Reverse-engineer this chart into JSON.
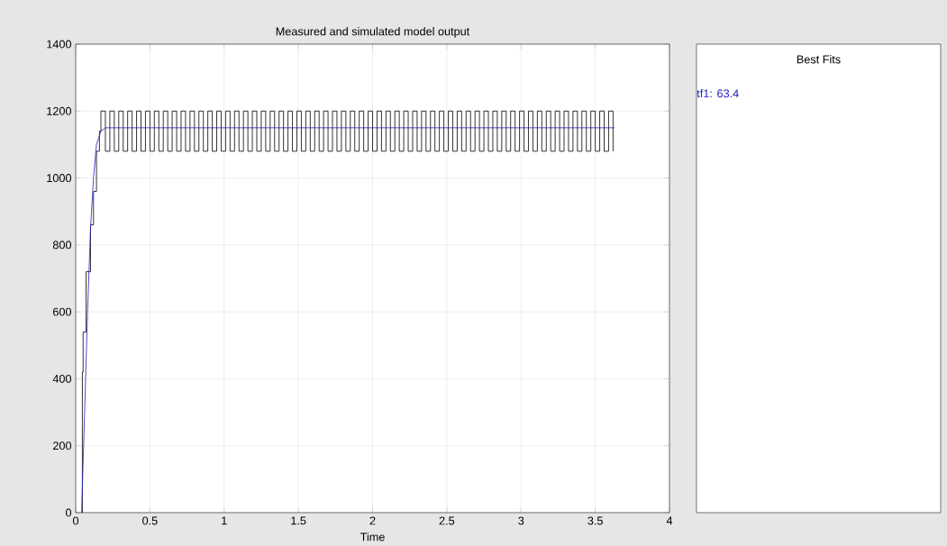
{
  "chart_data": [
    {
      "type": "line",
      "title": "Measured and simulated model output",
      "xlabel": "Time",
      "xlim": [
        0,
        4
      ],
      "ylim": [
        0,
        1400
      ],
      "xticks": [
        0,
        0.5,
        1,
        1.5,
        2,
        2.5,
        3,
        3.5,
        4
      ],
      "yticks": [
        0,
        200,
        400,
        600,
        800,
        1000,
        1200,
        1400
      ],
      "grid": true,
      "series": [
        {
          "type": "step",
          "color": "#000000",
          "x": [
            0.04,
            0.045,
            0.05,
            0.07,
            0.09,
            0.1,
            0.12,
            0.13,
            0.14,
            0.16,
            0.17,
            0.2,
            0.23,
            0.26,
            0.29,
            0.32,
            0.35,
            0.38,
            0.41,
            0.44,
            0.47,
            0.5,
            0.53,
            0.56,
            0.59,
            0.62,
            0.65,
            0.68,
            0.71,
            0.74,
            0.77,
            0.8,
            0.83,
            0.86,
            0.89,
            0.92,
            0.95,
            0.98,
            1.01,
            1.04,
            1.07,
            1.1,
            1.13,
            1.16,
            1.19,
            1.22,
            1.25,
            1.28,
            1.31,
            1.34,
            1.37,
            1.4,
            1.43,
            1.46,
            1.49,
            1.52,
            1.55,
            1.58,
            1.61,
            1.64,
            1.67,
            1.7,
            1.73,
            1.76,
            1.79,
            1.82,
            1.85,
            1.88,
            1.91,
            1.94,
            1.97,
            2.0,
            2.03,
            2.06,
            2.09,
            2.12,
            2.15,
            2.18,
            2.21,
            2.24,
            2.27,
            2.3,
            2.33,
            2.36,
            2.39,
            2.42,
            2.45,
            2.48,
            2.51,
            2.54,
            2.57,
            2.6,
            2.63,
            2.66,
            2.69,
            2.72,
            2.75,
            2.78,
            2.81,
            2.84,
            2.87,
            2.9,
            2.93,
            2.96,
            2.99,
            3.02,
            3.05,
            3.08,
            3.11,
            3.14,
            3.17,
            3.2,
            3.23,
            3.26,
            3.29,
            3.32,
            3.35,
            3.38,
            3.41,
            3.44,
            3.47,
            3.5,
            3.53,
            3.56,
            3.59,
            3.62
          ],
          "values": [
            0,
            420,
            540,
            720,
            720,
            860,
            960,
            960,
            1080,
            1140,
            1200,
            1080,
            1200,
            1080,
            1200,
            1080,
            1200,
            1080,
            1200,
            1080,
            1200,
            1080,
            1200,
            1080,
            1200,
            1080,
            1200,
            1080,
            1200,
            1080,
            1200,
            1080,
            1200,
            1080,
            1200,
            1080,
            1200,
            1080,
            1200,
            1080,
            1200,
            1080,
            1200,
            1080,
            1200,
            1080,
            1200,
            1080,
            1200,
            1080,
            1200,
            1080,
            1200,
            1080,
            1200,
            1080,
            1200,
            1080,
            1200,
            1080,
            1200,
            1080,
            1200,
            1080,
            1200,
            1080,
            1200,
            1080,
            1200,
            1080,
            1200,
            1080,
            1200,
            1080,
            1200,
            1080,
            1200,
            1080,
            1200,
            1080,
            1200,
            1080,
            1200,
            1080,
            1200,
            1080,
            1200,
            1080,
            1200,
            1080,
            1200,
            1080,
            1200,
            1080,
            1200,
            1080,
            1200,
            1080,
            1200,
            1080,
            1200,
            1080,
            1200,
            1080,
            1200,
            1080,
            1200,
            1080,
            1200,
            1080,
            1200,
            1080,
            1200,
            1080,
            1200,
            1080,
            1200,
            1080,
            1200,
            1080,
            1200,
            1080,
            1200,
            1080,
            1200,
            1080
          ]
        },
        {
          "type": "line",
          "color": "#2020c0",
          "x": [
            0.04,
            0.06,
            0.08,
            0.1,
            0.12,
            0.14,
            0.17,
            0.2,
            3.63
          ],
          "values": [
            0,
            300,
            600,
            850,
            1000,
            1100,
            1140,
            1150,
            1150
          ]
        }
      ]
    },
    {
      "type": "other",
      "title": "Best Fits",
      "annotations": [
        "tf1: 63.4"
      ]
    }
  ]
}
